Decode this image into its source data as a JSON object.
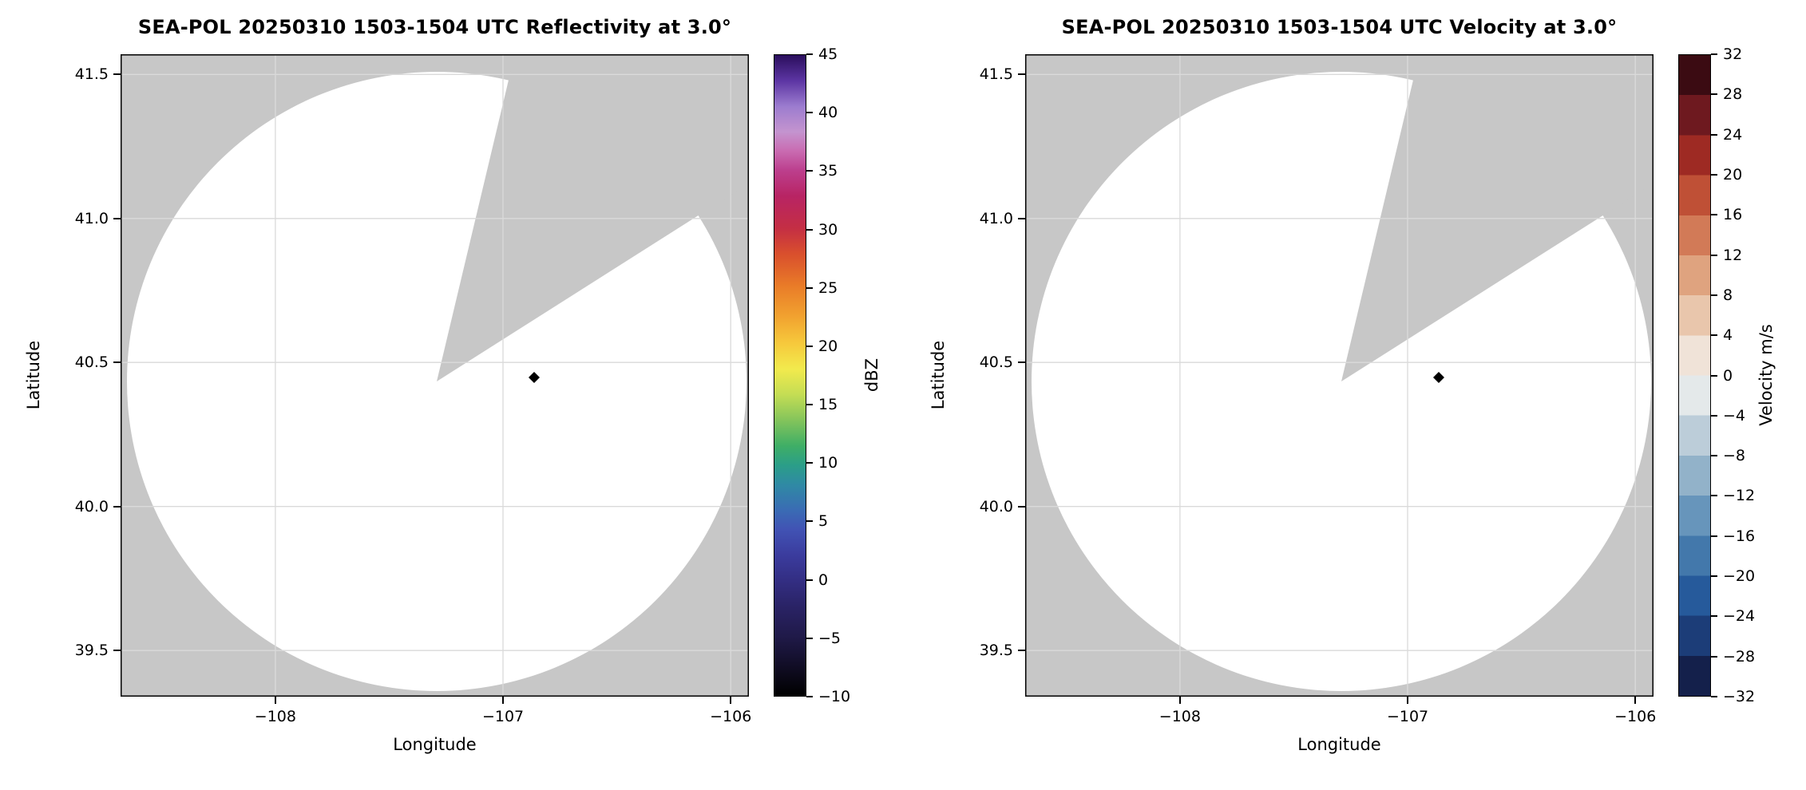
{
  "figure": {
    "background_color": "#ffffff",
    "plot_background_color": "#c7c7c7",
    "coverage_fill_color": "#ffffff",
    "grid_color": "#dadada",
    "marker_color": "#000000"
  },
  "chart_data": [
    {
      "type": "heatmap",
      "subtype": "radar-ppi-scan",
      "title": "SEA-POL 20250310 1503-1504 UTC Reflectivity at 3.0°",
      "field": "Reflectivity",
      "elevation_deg": 3.0,
      "xlabel": "Longitude",
      "ylabel": "Latitude",
      "xlim": [
        -108.68,
        -105.92
      ],
      "ylim": [
        39.34,
        41.57
      ],
      "xticks": [
        -108,
        -107,
        -106
      ],
      "xtick_labels": [
        "−108",
        "−107",
        "−106"
      ],
      "yticks": [
        39.5,
        40.0,
        40.5,
        41.0,
        41.5
      ],
      "ytick_labels": [
        "39.5",
        "40.0",
        "40.5",
        "41.0",
        "41.5"
      ],
      "grid": true,
      "echoes": "none visible; white coverage circle on gray no-data background",
      "radar_coverage": {
        "center_lon": -107.29,
        "center_lat": 40.43,
        "radius_deg_lat": 1.08,
        "blanked_sector_azimuth_deg": [
          13,
          58
        ],
        "site_marker": {
          "lon": -106.86,
          "lat": 40.45,
          "shape": "diamond",
          "color": "#000000"
        }
      },
      "colorbar": {
        "label": "dBZ",
        "min": -10,
        "max": 45,
        "tick_step": 5,
        "tick_labels_top_to_bottom": [
          "45",
          "40",
          "35",
          "30",
          "25",
          "20",
          "15",
          "10",
          "5",
          "0",
          "−5",
          "−10"
        ],
        "style": "continuous",
        "gradient_stops": [
          {
            "pos": 0,
            "color": "#2a0e5c"
          },
          {
            "pos": 4,
            "color": "#5c35a3"
          },
          {
            "pos": 8,
            "color": "#9c7ccf"
          },
          {
            "pos": 12,
            "color": "#c494cf"
          },
          {
            "pos": 15,
            "color": "#c96bb1"
          },
          {
            "pos": 18,
            "color": "#bc3f8d"
          },
          {
            "pos": 22,
            "color": "#b82464"
          },
          {
            "pos": 27,
            "color": "#c42e44"
          },
          {
            "pos": 31,
            "color": "#d94f2d"
          },
          {
            "pos": 36,
            "color": "#e97b28"
          },
          {
            "pos": 41,
            "color": "#f2a430"
          },
          {
            "pos": 45,
            "color": "#f6c93c"
          },
          {
            "pos": 49,
            "color": "#f2ea4d"
          },
          {
            "pos": 53,
            "color": "#c4dd54"
          },
          {
            "pos": 57,
            "color": "#83c45b"
          },
          {
            "pos": 61,
            "color": "#3fae66"
          },
          {
            "pos": 64,
            "color": "#2b9e88"
          },
          {
            "pos": 67,
            "color": "#2f8aa4"
          },
          {
            "pos": 71,
            "color": "#3a6cb4"
          },
          {
            "pos": 74,
            "color": "#4153b4"
          },
          {
            "pos": 78,
            "color": "#3b3c9e"
          },
          {
            "pos": 82,
            "color": "#332e83"
          },
          {
            "pos": 86,
            "color": "#2a2366"
          },
          {
            "pos": 91,
            "color": "#1f1947"
          },
          {
            "pos": 95,
            "color": "#120e28"
          },
          {
            "pos": 100,
            "color": "#000000"
          }
        ]
      }
    },
    {
      "type": "heatmap",
      "subtype": "radar-ppi-scan",
      "title": "SEA-POL 20250310 1503-1504 UTC Velocity at 3.0°",
      "field": "Velocity",
      "elevation_deg": 3.0,
      "xlabel": "Longitude",
      "ylabel": "Latitude",
      "xlim": [
        -108.68,
        -105.92
      ],
      "ylim": [
        39.34,
        41.57
      ],
      "xticks": [
        -108,
        -107,
        -106
      ],
      "xtick_labels": [
        "−108",
        "−107",
        "−106"
      ],
      "yticks": [
        39.5,
        40.0,
        40.5,
        41.0,
        41.5
      ],
      "ytick_labels": [
        "39.5",
        "40.0",
        "40.5",
        "41.0",
        "41.5"
      ],
      "grid": true,
      "echoes": "none visible; white coverage circle on gray no-data background",
      "radar_coverage": {
        "center_lon": -107.29,
        "center_lat": 40.43,
        "radius_deg_lat": 1.08,
        "blanked_sector_azimuth_deg": [
          13,
          58
        ],
        "site_marker": {
          "lon": -106.86,
          "lat": 40.45,
          "shape": "diamond",
          "color": "#000000"
        }
      },
      "colorbar": {
        "label": "Velocity m/s",
        "min": -32,
        "max": 32,
        "tick_step": 4,
        "tick_labels_top_to_bottom": [
          "32",
          "28",
          "24",
          "20",
          "16",
          "12",
          "8",
          "4",
          "0",
          "−4",
          "−8",
          "−12",
          "−16",
          "−20",
          "−24",
          "−28",
          "−32"
        ],
        "style": "discrete",
        "segment_colors_top_to_bottom": [
          "#3b0b12",
          "#6e191f",
          "#9e2a23",
          "#bf5036",
          "#d27a57",
          "#dfa37f",
          "#e9c6ac",
          "#f0e3d8",
          "#e4e9ea",
          "#bccdd9",
          "#92b2c9",
          "#6795bb",
          "#4378ab",
          "#265a9b",
          "#1c3d78",
          "#14204b"
        ]
      }
    }
  ]
}
